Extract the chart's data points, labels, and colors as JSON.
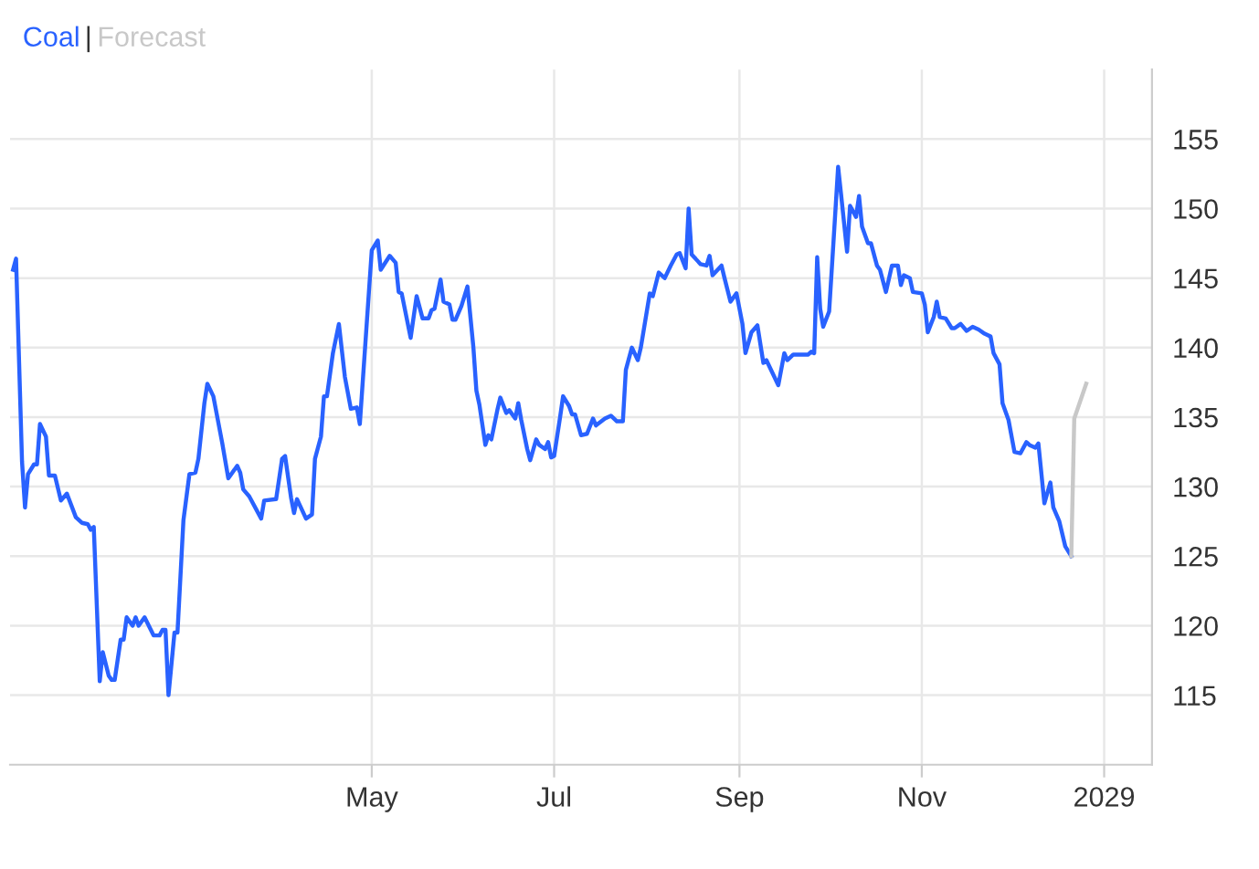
{
  "chart_data": {
    "type": "line",
    "legend": "top left",
    "annotations": [
      "|"
    ],
    "grid": true,
    "marker": "none",
    "line_style": "solid",
    "xlim": [
      "2028-01-01",
      "2029-01-17"
    ],
    "xticks": [
      {
        "value": "2028-05-01",
        "label": "May"
      },
      {
        "value": "2028-07-01",
        "label": "Jul"
      },
      {
        "value": "2028-09-01",
        "label": "Sep"
      },
      {
        "value": "2028-11-01",
        "label": "Nov"
      },
      {
        "value": "2029-01-01",
        "label": "2029"
      }
    ],
    "ylim": [
      110,
      160
    ],
    "yticks": [
      115,
      120,
      125,
      130,
      135,
      140,
      145,
      150,
      155
    ],
    "series": [
      {
        "name": "Coal",
        "color": "#2962ff",
        "x": [
          "2028-01-02",
          "2028-01-03",
          "2028-01-05",
          "2028-01-06",
          "2028-01-07",
          "2028-01-09",
          "2028-01-10",
          "2028-01-11",
          "2028-01-13",
          "2028-01-14",
          "2028-01-16",
          "2028-01-18",
          "2028-01-20",
          "2028-01-23",
          "2028-01-25",
          "2028-01-27",
          "2028-01-28",
          "2028-01-29",
          "2028-01-31",
          "2028-02-01",
          "2028-02-03",
          "2028-02-04",
          "2028-02-05",
          "2028-02-07",
          "2028-02-08",
          "2028-02-09",
          "2028-02-11",
          "2028-02-12",
          "2028-02-13",
          "2028-02-15",
          "2028-02-18",
          "2028-02-20",
          "2028-02-21",
          "2028-02-22",
          "2028-02-23",
          "2028-02-25",
          "2028-02-26",
          "2028-02-28",
          "2028-03-01",
          "2028-03-03",
          "2028-03-04",
          "2028-03-06",
          "2028-03-07",
          "2028-03-09",
          "2028-03-12",
          "2028-03-14",
          "2028-03-17",
          "2028-03-18",
          "2028-03-19",
          "2028-03-21",
          "2028-03-25",
          "2028-03-26",
          "2028-03-30",
          "2028-04-01",
          "2028-04-02",
          "2028-04-04",
          "2028-04-05",
          "2028-04-06",
          "2028-04-09",
          "2028-04-11",
          "2028-04-12",
          "2028-04-14",
          "2028-04-15",
          "2028-04-16",
          "2028-04-18",
          "2028-04-20",
          "2028-04-22",
          "2028-04-24",
          "2028-04-26",
          "2028-04-27",
          "2028-05-01",
          "2028-05-03",
          "2028-05-04",
          "2028-05-07",
          "2028-05-09",
          "2028-05-10",
          "2028-05-11",
          "2028-05-14",
          "2028-05-16",
          "2028-05-18",
          "2028-05-20",
          "2028-05-21",
          "2028-05-22",
          "2028-05-24",
          "2028-05-25",
          "2028-05-27",
          "2028-05-28",
          "2028-05-29",
          "2028-05-31",
          "2028-06-02",
          "2028-06-04",
          "2028-06-05",
          "2028-06-06",
          "2028-06-08",
          "2028-06-09",
          "2028-06-10",
          "2028-06-12",
          "2028-06-13",
          "2028-06-15",
          "2028-06-16",
          "2028-06-18",
          "2028-06-19",
          "2028-06-20",
          "2028-06-22",
          "2028-06-23",
          "2028-06-25",
          "2028-06-26",
          "2028-06-28",
          "2028-06-29",
          "2028-06-30",
          "2028-07-01",
          "2028-07-03",
          "2028-07-04",
          "2028-07-06",
          "2028-07-07",
          "2028-07-08",
          "2028-07-10",
          "2028-07-12",
          "2028-07-14",
          "2028-07-15",
          "2028-07-18",
          "2028-07-20",
          "2028-07-22",
          "2028-07-24",
          "2028-07-25",
          "2028-07-27",
          "2028-07-29",
          "2028-07-30",
          "2028-08-02",
          "2028-08-03",
          "2028-08-05",
          "2028-08-07",
          "2028-08-09",
          "2028-08-11",
          "2028-08-12",
          "2028-08-14",
          "2028-08-15",
          "2028-08-16",
          "2028-08-19",
          "2028-08-21",
          "2028-08-22",
          "2028-08-23",
          "2028-08-26",
          "2028-08-27",
          "2028-08-29",
          "2028-08-31",
          "2028-09-02",
          "2028-09-03",
          "2028-09-05",
          "2028-09-07",
          "2028-09-09",
          "2028-09-10",
          "2028-09-12",
          "2028-09-14",
          "2028-09-16",
          "2028-09-17",
          "2028-09-19",
          "2028-09-24",
          "2028-09-25",
          "2028-09-26",
          "2028-09-27",
          "2028-09-28",
          "2028-09-29",
          "2028-10-01",
          "2028-10-03",
          "2028-10-04",
          "2028-10-05",
          "2028-10-07",
          "2028-10-08",
          "2028-10-10",
          "2028-10-11",
          "2028-10-12",
          "2028-10-14",
          "2028-10-15",
          "2028-10-17",
          "2028-10-18",
          "2028-10-20",
          "2028-10-22",
          "2028-10-24",
          "2028-10-25",
          "2028-10-26",
          "2028-10-28",
          "2028-10-29",
          "2028-11-01",
          "2028-11-02",
          "2028-11-03",
          "2028-11-05",
          "2028-11-06",
          "2028-11-07",
          "2028-11-09",
          "2028-11-11",
          "2028-11-12",
          "2028-11-14",
          "2028-11-16",
          "2028-11-18",
          "2028-11-20",
          "2028-11-22",
          "2028-11-24",
          "2028-11-25",
          "2028-11-27",
          "2028-11-28",
          "2028-11-30",
          "2028-12-02",
          "2028-12-04",
          "2028-12-06",
          "2028-12-07",
          "2028-12-09",
          "2028-12-10",
          "2028-12-12",
          "2028-12-14",
          "2028-12-15",
          "2028-12-17",
          "2028-12-19",
          "2028-12-21"
        ],
        "values": [
          145.6,
          146.4,
          131.8,
          128.5,
          130.9,
          131.6,
          131.6,
          134.5,
          133.6,
          130.8,
          130.8,
          129.0,
          129.5,
          127.8,
          127.4,
          127.3,
          126.9,
          127.1,
          116.0,
          118.1,
          116.4,
          116.1,
          116.1,
          119.0,
          119.0,
          120.6,
          120.0,
          120.6,
          120.0,
          120.6,
          119.3,
          119.3,
          119.7,
          119.7,
          115.0,
          119.5,
          119.5,
          127.6,
          130.9,
          131.0,
          132.0,
          136.0,
          137.4,
          136.5,
          133.1,
          130.6,
          131.5,
          131.0,
          129.8,
          129.3,
          127.7,
          129.0,
          129.1,
          132.0,
          132.2,
          129.2,
          128.1,
          129.1,
          127.7,
          128.0,
          132.0,
          133.6,
          136.5,
          136.5,
          139.6,
          141.7,
          137.9,
          135.6,
          135.7,
          134.5,
          147.0,
          147.7,
          145.6,
          146.6,
          146.1,
          144.0,
          143.9,
          140.7,
          143.7,
          142.1,
          142.1,
          142.7,
          142.8,
          144.9,
          143.3,
          143.1,
          142.0,
          142.0,
          143.0,
          144.4,
          140.0,
          136.9,
          135.9,
          133.0,
          133.7,
          133.4,
          135.5,
          136.4,
          135.3,
          135.5,
          134.9,
          136.0,
          134.8,
          132.7,
          131.9,
          133.4,
          133.0,
          132.7,
          133.2,
          132.1,
          132.2,
          135.0,
          136.5,
          135.8,
          135.2,
          135.2,
          133.7,
          133.8,
          134.9,
          134.4,
          134.9,
          135.1,
          134.7,
          134.7,
          138.4,
          140.0,
          139.1,
          140.0,
          143.9,
          143.7,
          145.4,
          145.0,
          145.9,
          146.7,
          146.8,
          145.7,
          150.0,
          146.7,
          146.0,
          145.9,
          146.6,
          145.2,
          145.9,
          145.0,
          143.3,
          143.9,
          141.7,
          139.6,
          141.1,
          141.6,
          138.9,
          139.1,
          138.2,
          137.3,
          139.6,
          139.1,
          139.5,
          139.5,
          139.7,
          139.6,
          146.5,
          142.8,
          141.5,
          142.6,
          149.5,
          153.0,
          151.0,
          146.9,
          150.2,
          149.4,
          150.9,
          148.7,
          147.5,
          147.5,
          145.9,
          145.6,
          144.0,
          145.9,
          145.9,
          144.5,
          145.2,
          145.0,
          144.0,
          143.9,
          143.1,
          141.1,
          142.2,
          143.3,
          142.2,
          142.1,
          141.4,
          141.4,
          141.7,
          141.2,
          141.5,
          141.3,
          141.0,
          140.8,
          139.6,
          138.8,
          136.0,
          134.8,
          132.5,
          132.4,
          133.2,
          133.0,
          132.8,
          133.1,
          128.8,
          130.3,
          128.5,
          127.5,
          125.7,
          125.0
        ]
      },
      {
        "name": "Forecast",
        "color": "#c8c8c8",
        "x": [
          "2028-12-21",
          "2028-12-22",
          "2028-12-26"
        ],
        "values": [
          125.0,
          134.9,
          137.4
        ]
      }
    ]
  }
}
